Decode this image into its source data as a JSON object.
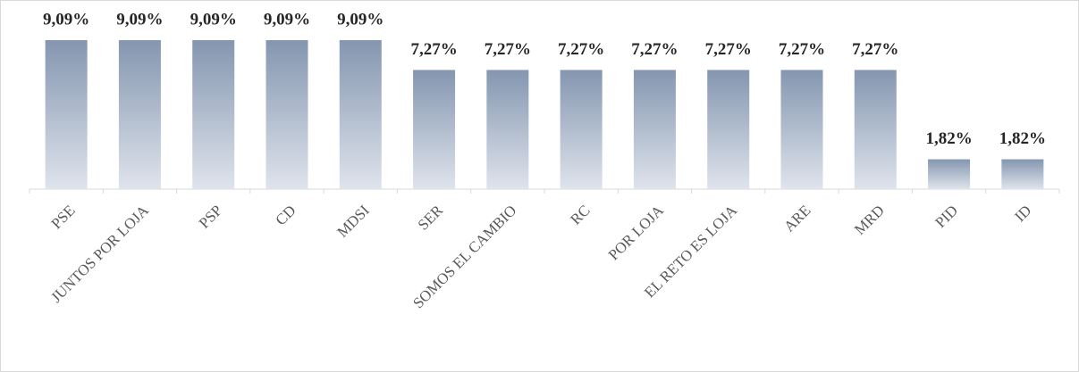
{
  "chart_data": {
    "type": "bar",
    "categories": [
      "PSE",
      "JUNTOS POR LOJA",
      "PSP",
      "CD",
      "MDSI",
      "SER",
      "SOMOS EL CAMBIO",
      "RC",
      "POR LOJA",
      "EL RETO ES LOJA",
      "ARE",
      "MRD",
      "PID",
      "ID"
    ],
    "values": [
      9.09,
      9.09,
      9.09,
      9.09,
      9.09,
      7.27,
      7.27,
      7.27,
      7.27,
      7.27,
      7.27,
      7.27,
      1.82,
      1.82
    ],
    "value_labels": [
      "9,09%",
      "9,09%",
      "9,09%",
      "9,09%",
      "9,09%",
      "7,27%",
      "7,27%",
      "7,27%",
      "7,27%",
      "7,27%",
      "7,27%",
      "7,27%",
      "1,82%",
      "1,82%"
    ],
    "color": "#8496b0"
  }
}
